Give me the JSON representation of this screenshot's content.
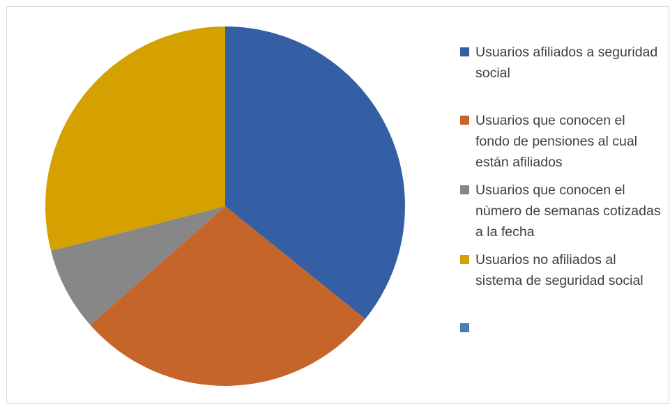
{
  "chart_data": {
    "type": "pie",
    "categories": [
      "Usuarios afiliados a seguridad social",
      "Usuarios que conocen el fondo de pensiones al cual están afiliados",
      "Usuarios que conocen el nùmero de semanas cotizadas a la fecha",
      "Usuarios no afiliados al sistema de seguridad social",
      null
    ],
    "values": [
      35.8,
      27.7,
      7.5,
      29.0,
      null
    ],
    "colors": [
      "#355fa5",
      "#c5652a",
      "#878787",
      "#d4a100",
      "#4a7ebb"
    ],
    "legend": "right"
  }
}
